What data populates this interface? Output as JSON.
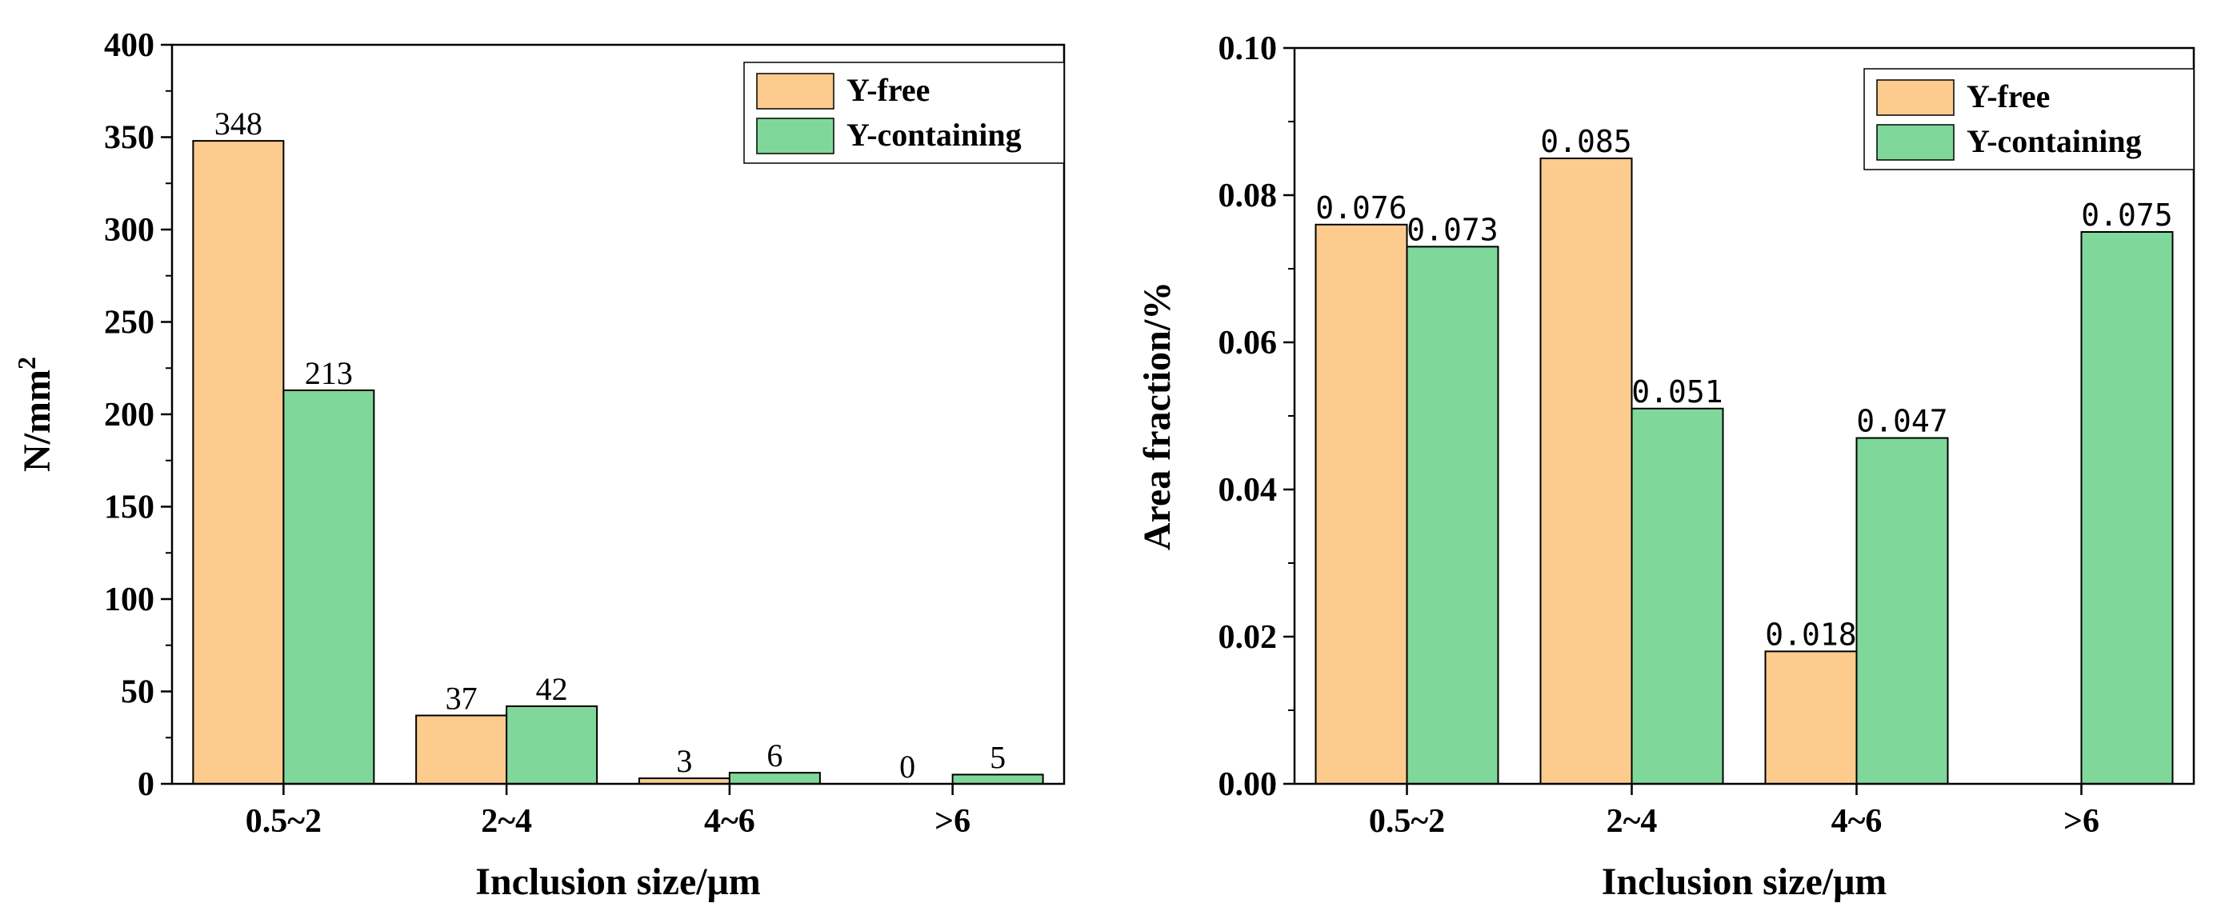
{
  "colors": {
    "y_free": "#fdcb8e",
    "y_containing": "#7fd89a",
    "axis": "#000000"
  },
  "chart_data": [
    {
      "type": "bar",
      "categories": [
        "0.5~2",
        "2~4",
        "4~6",
        ">6"
      ],
      "series": [
        {
          "name": "Y-free",
          "values": [
            348,
            37,
            3,
            0
          ],
          "labels": [
            "348",
            "37",
            "3",
            "0"
          ]
        },
        {
          "name": "Y-containing",
          "values": [
            213,
            42,
            6,
            5
          ],
          "labels": [
            "213",
            "42",
            "6",
            "5"
          ]
        }
      ],
      "title": "",
      "xlabel": "Inclusion size/μm",
      "ylabel": "N/mm",
      "ylabel_superscript": "2",
      "ylim": [
        0,
        400
      ],
      "yticks": [
        "0",
        "50",
        "100",
        "150",
        "200",
        "250",
        "300",
        "350",
        "400"
      ],
      "grid": false,
      "legend_position": "top-right"
    },
    {
      "type": "bar",
      "categories": [
        "0.5~2",
        "2~4",
        "4~6",
        ">6"
      ],
      "series": [
        {
          "name": "Y-free",
          "values": [
            0.076,
            0.085,
            0.018,
            0
          ],
          "labels": [
            "0.076",
            "0.085",
            "0.018",
            ""
          ]
        },
        {
          "name": "Y-containing",
          "values": [
            0.073,
            0.051,
            0.047,
            0.075
          ],
          "labels": [
            "0.073",
            "0.051",
            "0.047",
            "0.075"
          ]
        }
      ],
      "title": "",
      "xlabel": "Inclusion size/μm",
      "ylabel": "Area fraction/%",
      "ylim": [
        0,
        0.1
      ],
      "yticks": [
        "0.00",
        "0.02",
        "0.04",
        "0.06",
        "0.08",
        "0.10"
      ],
      "grid": false,
      "legend_position": "top-right"
    }
  ]
}
